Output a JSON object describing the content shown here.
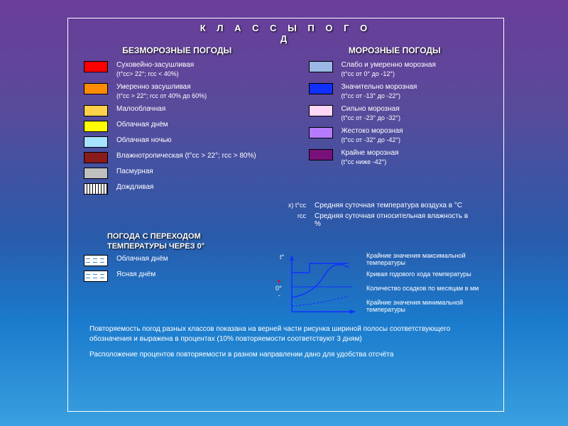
{
  "title_line1": "К Л А С С Ы     П О Г О",
  "title_line2": "Д",
  "left": {
    "heading": "БЕЗМОРОЗНЫЕ ПОГОДЫ",
    "items": [
      {
        "color": "#ff0000",
        "label": "Суховейно-засушливая",
        "sub": "(t°сс> 22°; rсс < 40%)"
      },
      {
        "color": "#ff8c00",
        "label": "Умеренно засушливая",
        "sub": "(t°сс > 22°; rсс от 40% до 60%)"
      },
      {
        "color": "#ffd24a",
        "label": "Малооблачная",
        "sub": ""
      },
      {
        "color": "#ffff00",
        "label": "Облачная днём",
        "sub": ""
      },
      {
        "color": "#a7e2ff",
        "label": "Облачная ночью",
        "sub": ""
      },
      {
        "color": "#8b1a1a",
        "label": "Влажнотропическая  (t°сс > 22°; rсс > 80%)",
        "sub": ""
      },
      {
        "color": "#c0c0c0",
        "label": "Пасмурная",
        "sub": ""
      },
      {
        "color": "hatched",
        "label": "Дождливая",
        "sub": ""
      }
    ]
  },
  "right": {
    "heading": "МОРОЗНЫЕ ПОГОДЫ",
    "items": [
      {
        "color": "#9bb7e6",
        "label": "Слабо и умеренно морозная",
        "sub": "(t°сс от 0° до -12°)"
      },
      {
        "color": "#1030ff",
        "label": "Значительно морозная",
        "sub": "(t°сс от -13° до -22°)"
      },
      {
        "color": "#ffd7f7",
        "label": "Сильно морозная",
        "sub": "(t°сс от -23° до -32°)"
      },
      {
        "color": "#b57bff",
        "label": "Жестоко морозная",
        "sub": "(t°сс от -32° до -42°)"
      },
      {
        "color": "#7a117a",
        "label": "Крайне морозная",
        "sub": "(t°сс ниже -42°)"
      }
    ]
  },
  "meta": [
    {
      "key": "x) t°сс",
      "val": "Средняя суточная температура воздуха в °С"
    },
    {
      "key": "rсс",
      "val": "Средняя суточная относительная влажность в %"
    }
  ],
  "transition": {
    "heading1": "ПОГОДА С ПЕРЕХОДОМ",
    "heading2": "ТЕМПЕРАТУРЫ ЧЕРЕЗ 0°",
    "items": [
      {
        "label": "Облачная  днём"
      },
      {
        "label": "Ясная  днём"
      }
    ]
  },
  "chart": {
    "axis_t": "t°",
    "axis_plus": "+",
    "axis_zero": "0°",
    "axis_minus": "-",
    "notes": [
      "Крайние значения максимальной температуры",
      "Кривая годового хода температуры",
      "Количество осадков по месяцам в мм",
      "Крайние значения минимальной температуры"
    ],
    "line_color_time": "#1030ff",
    "line_color_plus": "#ff0000",
    "line_color_year": "#1030ff"
  },
  "footer": {
    "line1": "Повторяемость погод разных классов показана на верней части рисунка шириной полосы соответствующего обозначения и выражена в процентах (10% повторяемости соответствуют  3 дням)",
    "line2": "Расположение процентов повторяемости в разном направлении дано для удобства отсчёта"
  }
}
